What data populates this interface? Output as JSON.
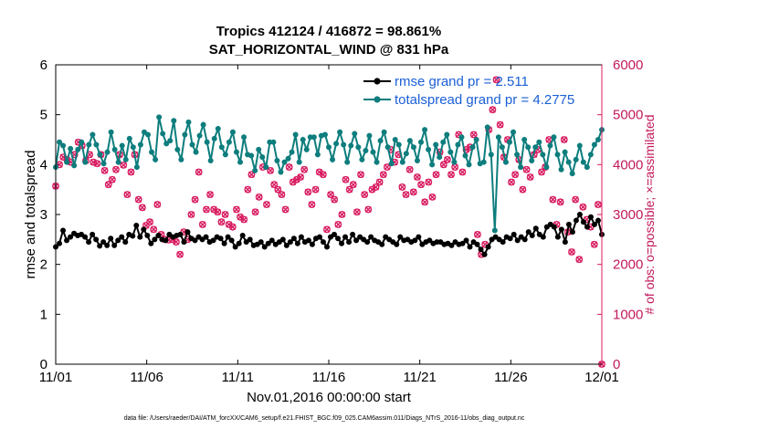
{
  "chart_data": {
    "type": "line",
    "title": "Tropics 412124 / 416872 = 98.861%",
    "subtitle": "SAT_HORIZONTAL_WIND @ 831 hPa",
    "xlabel": "Nov.01,2016 00:00:00 start",
    "ylabel_left": "rmse and totalspread",
    "ylabel_right": "# of obs: o=possible; ×=assimilated",
    "footer": "data file: /Users/raeder/DAI/ATM_forcXX/CAM6_setup/f.e21.FHIST_BGC.f09_025.CAM6assim.011/Diags_NTrS_2016-11/obs_diag_output.nc",
    "x_ticks": [
      "11/01",
      "11/06",
      "11/11",
      "11/16",
      "11/21",
      "11/26",
      "12/01"
    ],
    "x_range_days": [
      0,
      30
    ],
    "ylim_left": [
      0,
      6
    ],
    "yticks_left": [
      "0",
      "1",
      "2",
      "3",
      "4",
      "5",
      "6"
    ],
    "ylim_right": [
      0,
      6000
    ],
    "yticks_right": [
      "0",
      "1000",
      "2000",
      "3000",
      "4000",
      "5000",
      "6000"
    ],
    "colors": {
      "rmse": "#000000",
      "totalspread": "#0e7d7d",
      "obs": "#d81b60",
      "legend_text": "#1a5fd6"
    },
    "series": [
      {
        "name": "rmse",
        "legend": "rmse grand pr = 2.511",
        "axis": "left",
        "values": [
          2.35,
          2.42,
          2.68,
          2.48,
          2.55,
          2.62,
          2.58,
          2.6,
          2.55,
          2.45,
          2.6,
          2.5,
          2.37,
          2.45,
          2.38,
          2.52,
          2.38,
          2.48,
          2.55,
          2.45,
          2.6,
          2.57,
          2.78,
          2.55,
          2.7,
          2.58,
          2.42,
          2.5,
          2.58,
          2.5,
          2.48,
          2.6,
          2.55,
          2.58,
          2.6,
          2.45,
          2.65,
          2.52,
          2.48,
          2.55,
          2.5,
          2.55,
          2.45,
          2.48,
          2.55,
          2.52,
          2.42,
          2.55,
          2.48,
          2.35,
          2.42,
          2.58,
          2.45,
          2.5,
          2.38,
          2.4,
          2.45,
          2.35,
          2.42,
          2.48,
          2.4,
          2.45,
          2.5,
          2.38,
          2.45,
          2.52,
          2.42,
          2.55,
          2.45,
          2.48,
          2.4,
          2.52,
          2.55,
          2.45,
          2.35,
          2.55,
          2.6,
          2.52,
          2.42,
          2.55,
          2.45,
          2.6,
          2.48,
          2.55,
          2.5,
          2.45,
          2.55,
          2.48,
          2.45,
          2.4,
          2.55,
          2.5,
          2.45,
          2.4,
          2.55,
          2.48,
          2.5,
          2.45,
          2.48,
          2.55,
          2.4,
          2.45,
          2.48,
          2.42,
          2.45,
          2.45,
          2.4,
          2.42,
          2.38,
          2.45,
          2.4,
          2.42,
          2.48,
          2.35,
          2.45,
          2.4,
          2.3,
          2.2,
          2.35,
          2.5,
          2.55,
          2.5,
          2.45,
          2.55,
          2.52,
          2.6,
          2.48,
          2.55,
          2.5,
          2.65,
          2.58,
          2.72,
          2.6,
          2.55,
          2.75,
          2.8,
          2.75,
          2.55,
          2.7,
          2.45,
          2.8,
          2.65,
          2.88,
          3.0,
          2.85,
          2.75,
          2.95,
          2.8,
          2.88,
          2.6
        ]
      },
      {
        "name": "totalspread",
        "legend": "totalspread grand pr = 4.2775",
        "axis": "left",
        "values": [
          3.95,
          4.45,
          4.38,
          4.05,
          4.32,
          3.98,
          4.3,
          4.45,
          4.05,
          4.4,
          4.6,
          4.4,
          4.2,
          4.02,
          4.25,
          4.65,
          4.3,
          4.05,
          4.38,
          4.1,
          4.52,
          4.35,
          3.95,
          4.4,
          4.65,
          4.6,
          4.25,
          4.1,
          4.95,
          4.62,
          4.42,
          4.48,
          4.88,
          4.3,
          4.1,
          4.6,
          4.85,
          4.4,
          4.25,
          4.58,
          4.8,
          4.45,
          4.08,
          4.52,
          4.72,
          4.35,
          4.2,
          4.45,
          4.65,
          4.25,
          4.05,
          4.55,
          4.2,
          4.18,
          3.88,
          4.3,
          4.15,
          3.95,
          4.45,
          4.45,
          4.08,
          3.85,
          4.05,
          4.12,
          4.25,
          4.6,
          4.05,
          4.5,
          4.3,
          4.55,
          4.55,
          4.2,
          4.58,
          4.6,
          4.35,
          4.1,
          4.42,
          4.65,
          4.4,
          4.05,
          4.38,
          4.62,
          4.35,
          4.1,
          4.28,
          4.58,
          4.25,
          4.05,
          4.48,
          4.65,
          4.35,
          4.02,
          4.5,
          4.4,
          4.05,
          4.22,
          4.48,
          4.35,
          4.08,
          4.45,
          4.7,
          4.3,
          4.0,
          4.4,
          4.15,
          4.45,
          4.6,
          4.25,
          4.05,
          4.4,
          4.55,
          4.18,
          4.0,
          4.35,
          4.5,
          4.02,
          4.05,
          4.75,
          4.2,
          2.68,
          4.55,
          4.35,
          4.05,
          4.45,
          4.65,
          4.2,
          3.95,
          4.5,
          4.35,
          4.08,
          4.35,
          4.45,
          4.2,
          3.95,
          4.38,
          4.55,
          4.2,
          3.9,
          4.25,
          4.05,
          3.82,
          4.1,
          4.38,
          4.05,
          3.95,
          4.2,
          4.4,
          4.5,
          4.7
        ]
      },
      {
        "name": "obs possible",
        "axis": "right",
        "marker": "o",
        "values": [
          3570,
          4000,
          4150,
          4100,
          4050,
          4200,
          4450,
          4380,
          4080,
          4200,
          4050,
          4020,
          4200,
          3880,
          3600,
          3700,
          3900,
          4200,
          3990,
          3400,
          3850,
          4200,
          3300,
          3140,
          2780,
          2850,
          2700,
          3200,
          2600,
          2500,
          2490,
          2500,
          2450,
          2200,
          2650,
          2500,
          3000,
          3300,
          3850,
          2800,
          3100,
          3400,
          3100,
          3050,
          2850,
          3000,
          2800,
          2750,
          3100,
          2950,
          2900,
          3500,
          3800,
          3050,
          3350,
          3950,
          3200,
          3880,
          3600,
          3500,
          3400,
          3100,
          3950,
          3650,
          3700,
          3750,
          3900,
          3450,
          3200,
          3500,
          3850,
          3800,
          2700,
          3400,
          3300,
          2800,
          3000,
          3700,
          3500,
          3600,
          3050,
          3800,
          3400,
          3100,
          3500,
          3550,
          3650,
          3800,
          3950,
          4300,
          4050,
          4200,
          3550,
          3400,
          3900,
          3450,
          3750,
          3600,
          3250,
          3650,
          3350,
          3800,
          4250,
          4000,
          4100,
          3800,
          3950,
          4600,
          3850,
          4300,
          4350,
          4600,
          2600,
          2200,
          2400,
          4700,
          5100,
          5700,
          4800,
          4150,
          4500,
          3650,
          3800,
          4100,
          3500,
          3900,
          3750,
          4200,
          4300,
          3850,
          3950,
          4500,
          3300,
          2800,
          3250,
          4500,
          2650,
          2250,
          3300,
          2100,
          3150,
          2900,
          2750,
          2400,
          3200,
          0
        ]
      }
    ]
  }
}
